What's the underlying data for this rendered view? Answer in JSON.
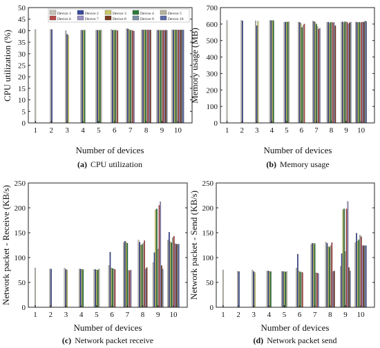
{
  "legend": {
    "device_labels": [
      "Device 1",
      "Device 2",
      "Device 3",
      "Device 4",
      "Device 5",
      "Device 6",
      "Device 7",
      "Device 8",
      "Device 9",
      "Device 10"
    ],
    "device_colors": [
      "#c8c3b8",
      "#3a4b9c",
      "#c9c968",
      "#2d7a3a",
      "#b7b49e",
      "#b84a4a",
      "#9b8fc4",
      "#7a3a1e",
      "#7e90a6",
      "#5a6aa8"
    ]
  },
  "chart_data": [
    {
      "type": "bar",
      "panel": "a",
      "caption_letter": "(a)",
      "caption_text": "CPU utilization",
      "xlabel": "Number of devices",
      "ylabel": "CPU utilization (%)",
      "categories": [
        "1",
        "2",
        "3",
        "4",
        "5",
        "6",
        "7",
        "8",
        "9",
        "10"
      ],
      "ylim": [
        0,
        50
      ],
      "yticks": [
        0,
        5,
        10,
        15,
        20,
        25,
        30,
        35,
        40,
        45,
        50
      ],
      "legend_position": "top-right",
      "series": [
        {
          "name": "Device 1",
          "values": [
            40.5,
            40.5,
            40.0,
            40.2,
            40.2,
            40.5,
            40.8,
            40.3,
            40.2,
            40.3
          ]
        },
        {
          "name": "Device 2",
          "values": [
            null,
            40.5,
            38.5,
            40.2,
            40.2,
            40.2,
            40.8,
            40.3,
            40.2,
            40.3
          ]
        },
        {
          "name": "Device 3",
          "values": [
            null,
            null,
            38.0,
            40.2,
            40.2,
            40.2,
            40.5,
            40.3,
            40.2,
            40.3
          ]
        },
        {
          "name": "Device 4",
          "values": [
            null,
            null,
            null,
            40.2,
            40.2,
            40.2,
            40.2,
            40.3,
            40.2,
            40.3
          ]
        },
        {
          "name": "Device 5",
          "values": [
            null,
            null,
            null,
            null,
            40.2,
            40.2,
            40.2,
            40.3,
            40.2,
            40.3
          ]
        },
        {
          "name": "Device 6",
          "values": [
            null,
            null,
            null,
            null,
            null,
            40.0,
            40.0,
            40.3,
            40.2,
            40.3
          ]
        },
        {
          "name": "Device 7",
          "values": [
            null,
            null,
            null,
            null,
            null,
            null,
            39.8,
            40.3,
            40.2,
            40.3
          ]
        },
        {
          "name": "Device 8",
          "values": [
            null,
            null,
            null,
            null,
            null,
            null,
            null,
            40.3,
            40.2,
            40.3
          ]
        },
        {
          "name": "Device 9",
          "values": [
            null,
            null,
            null,
            null,
            null,
            null,
            null,
            null,
            40.2,
            40.3
          ]
        },
        {
          "name": "Device 10",
          "values": [
            null,
            null,
            null,
            null,
            null,
            null,
            null,
            null,
            null,
            40.3
          ]
        }
      ]
    },
    {
      "type": "bar",
      "panel": "b",
      "caption_letter": "(b)",
      "caption_text": "Memory usage",
      "xlabel": "Number of devices",
      "ylabel": "Memory usage (MB)",
      "categories": [
        "1",
        "2",
        "3",
        "4",
        "5",
        "6",
        "7",
        "8",
        "9",
        "10"
      ],
      "ylim": [
        0,
        700
      ],
      "yticks": [
        0,
        100,
        200,
        300,
        400,
        500,
        600,
        700
      ],
      "series": [
        {
          "name": "Device 1",
          "values": [
            622,
            622,
            620,
            622,
            610,
            612,
            618,
            610,
            612,
            612
          ]
        },
        {
          "name": "Device 2",
          "values": [
            null,
            620,
            590,
            622,
            612,
            610,
            615,
            612,
            614,
            612
          ]
        },
        {
          "name": "Device 3",
          "values": [
            null,
            null,
            618,
            622,
            614,
            605,
            612,
            605,
            608,
            608
          ]
        },
        {
          "name": "Device 4",
          "values": [
            null,
            null,
            null,
            622,
            612,
            580,
            600,
            610,
            615,
            612
          ]
        },
        {
          "name": "Device 5",
          "values": [
            null,
            null,
            null,
            null,
            614,
            592,
            585,
            612,
            612,
            608
          ]
        },
        {
          "name": "Device 6",
          "values": [
            null,
            null,
            null,
            null,
            null,
            600,
            570,
            608,
            612,
            612
          ]
        },
        {
          "name": "Device 7",
          "values": [
            null,
            null,
            null,
            null,
            null,
            null,
            575,
            610,
            600,
            612
          ]
        },
        {
          "name": "Device 8",
          "values": [
            null,
            null,
            null,
            null,
            null,
            null,
            null,
            590,
            608,
            612
          ]
        },
        {
          "name": "Device 9",
          "values": [
            null,
            null,
            null,
            null,
            null,
            null,
            null,
            null,
            612,
            620
          ]
        },
        {
          "name": "Device 10",
          "values": [
            null,
            null,
            null,
            null,
            null,
            null,
            null,
            null,
            null,
            615
          ]
        }
      ]
    },
    {
      "type": "bar",
      "panel": "c",
      "caption_letter": "(c)",
      "caption_text": "Network packet receive",
      "xlabel": "Number of devices",
      "ylabel": "Network packet - Receive (KB/s)",
      "categories": [
        "1",
        "2",
        "3",
        "4",
        "5",
        "6",
        "7",
        "8",
        "9",
        "10"
      ],
      "ylim": [
        0,
        250
      ],
      "yticks": [
        0,
        50,
        100,
        150,
        200,
        250
      ],
      "series": [
        {
          "name": "Device 1",
          "values": [
            79,
            77,
            79,
            77,
            76,
            84,
            130,
            135,
            90,
            135
          ]
        },
        {
          "name": "Device 2",
          "values": [
            null,
            77,
            76,
            77,
            76,
            111,
            133,
            131,
            110,
            151
          ]
        },
        {
          "name": "Device 3",
          "values": [
            null,
            null,
            75,
            76,
            75,
            79,
            131,
            125,
            196,
            132
          ]
        },
        {
          "name": "Device 4",
          "values": [
            null,
            null,
            null,
            76,
            75,
            78,
            129,
            126,
            198,
            130
          ]
        },
        {
          "name": "Device 5",
          "values": [
            null,
            null,
            null,
            null,
            77,
            77,
            74,
            129,
            117,
            140
          ]
        },
        {
          "name": "Device 6",
          "values": [
            null,
            null,
            null,
            null,
            null,
            76,
            74,
            134,
            205,
            143
          ]
        },
        {
          "name": "Device 7",
          "values": [
            null,
            null,
            null,
            null,
            null,
            null,
            75,
            77,
            212,
            128
          ]
        },
        {
          "name": "Device 8",
          "values": [
            null,
            null,
            null,
            null,
            null,
            null,
            null,
            80,
            84,
            127
          ]
        },
        {
          "name": "Device 9",
          "values": [
            null,
            null,
            null,
            null,
            null,
            null,
            null,
            null,
            77,
            127
          ]
        },
        {
          "name": "Device 10",
          "values": [
            null,
            null,
            null,
            null,
            null,
            null,
            null,
            null,
            null,
            127
          ]
        }
      ]
    },
    {
      "type": "bar",
      "panel": "d",
      "caption_letter": "(d)",
      "caption_text": "Network packet send",
      "xlabel": "Number of devices",
      "ylabel": "Network packet - Send (KB/s)",
      "categories": [
        "1",
        "2",
        "3",
        "4",
        "5",
        "6",
        "7",
        "8",
        "9",
        "10"
      ],
      "ylim": [
        0,
        250
      ],
      "yticks": [
        0,
        50,
        100,
        150,
        200,
        250
      ],
      "series": [
        {
          "name": "Device 1",
          "values": [
            75,
            72,
            75,
            73,
            72,
            79,
            126,
            131,
            82,
            130
          ]
        },
        {
          "name": "Device 2",
          "values": [
            null,
            72,
            72,
            73,
            72,
            107,
            129,
            129,
            108,
            149
          ]
        },
        {
          "name": "Device 3",
          "values": [
            null,
            null,
            70,
            72,
            72,
            73,
            128,
            122,
            196,
            133
          ]
        },
        {
          "name": "Device 4",
          "values": [
            null,
            null,
            null,
            72,
            71,
            71,
            128,
            121,
            198,
            136
          ]
        },
        {
          "name": "Device 5",
          "values": [
            null,
            null,
            null,
            null,
            72,
            71,
            69,
            124,
            112,
            145
          ]
        },
        {
          "name": "Device 6",
          "values": [
            null,
            null,
            null,
            null,
            null,
            70,
            69,
            130,
            198,
            142
          ]
        },
        {
          "name": "Device 7",
          "values": [
            null,
            null,
            null,
            null,
            null,
            null,
            68,
            72,
            213,
            124
          ]
        },
        {
          "name": "Device 8",
          "values": [
            null,
            null,
            null,
            null,
            null,
            null,
            null,
            73,
            80,
            124
          ]
        },
        {
          "name": "Device 9",
          "values": [
            null,
            null,
            null,
            null,
            null,
            null,
            null,
            null,
            73,
            124
          ]
        },
        {
          "name": "Device 10",
          "values": [
            null,
            null,
            null,
            null,
            null,
            null,
            null,
            null,
            null,
            124
          ]
        }
      ]
    }
  ]
}
